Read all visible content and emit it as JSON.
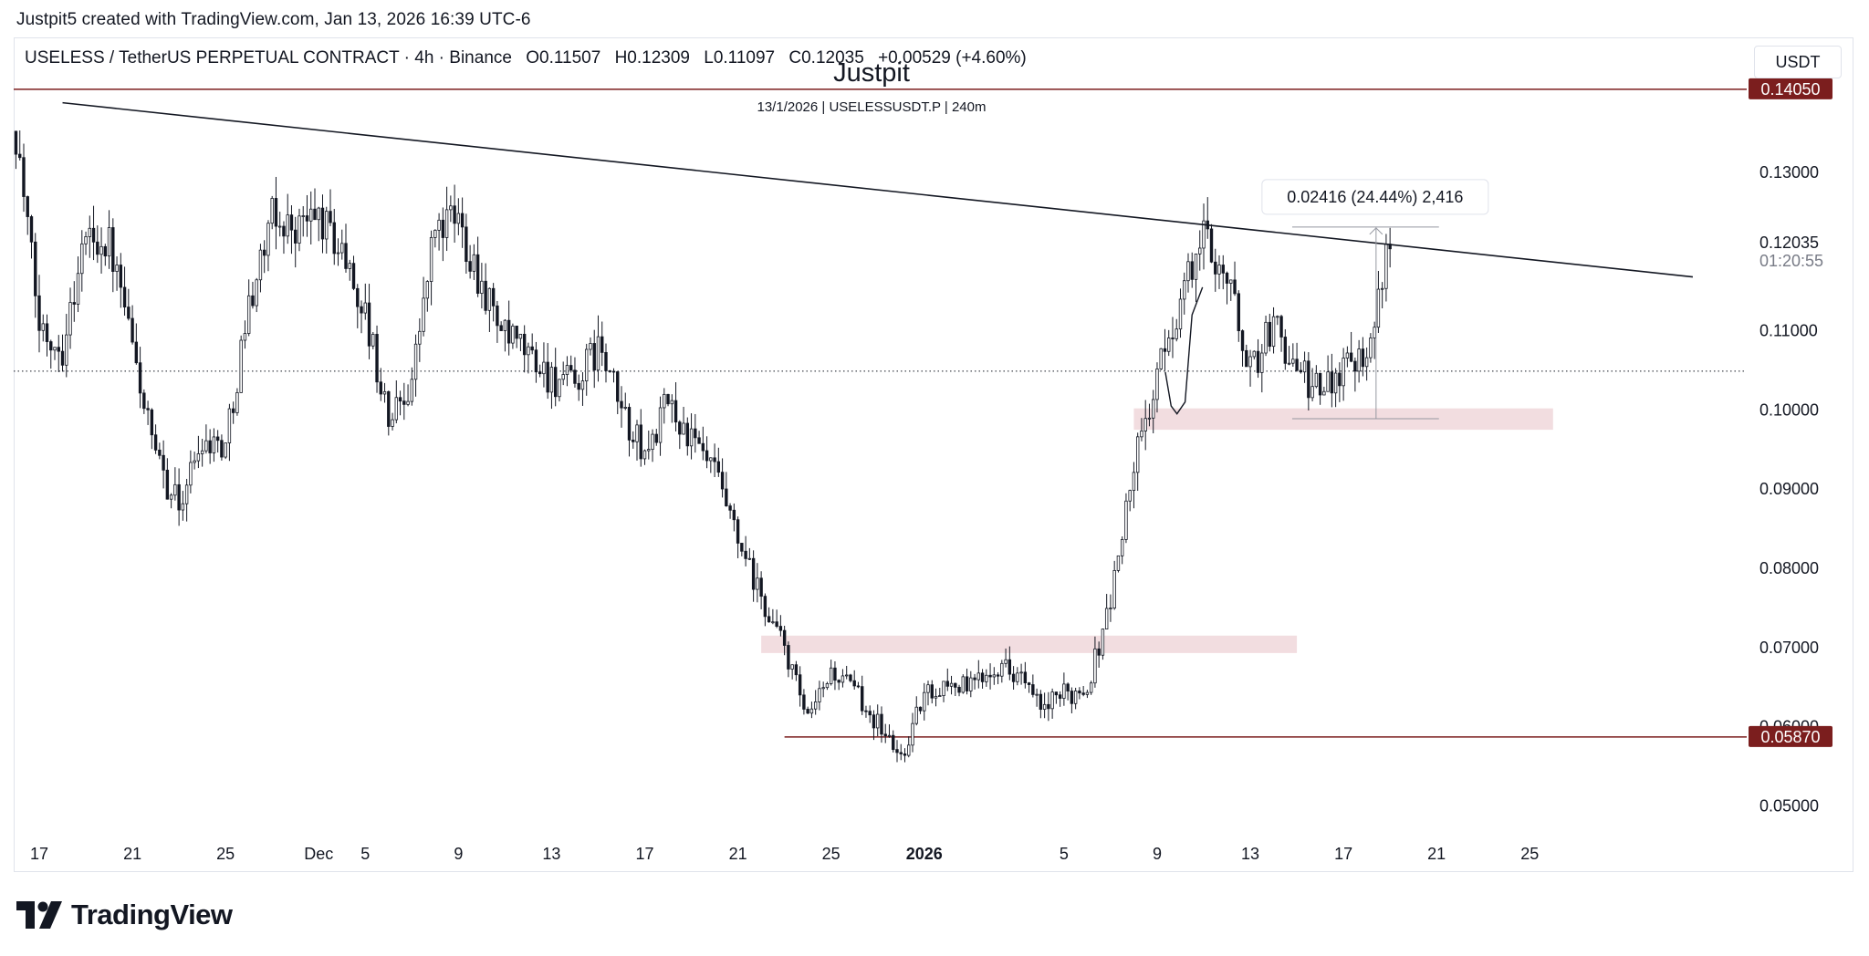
{
  "header": {
    "credit": "Justpit5 created with TradingView.com, Jan 13, 2026 16:39 UTC-6"
  },
  "legend": {
    "symbol": "USELESS / TetherUS PERPETUAL CONTRACT · 4h · Binance",
    "open": "O0.11507",
    "high": "H0.12309",
    "low": "L0.11097",
    "close": "C0.12035",
    "change": "+0.00529 (+4.60%)"
  },
  "watermark": {
    "title": "Justpit",
    "subtitle": "13/1/2026 | USELESSUSDT.P | 240m"
  },
  "currency_button": "USDT",
  "footer": {
    "brand": "TradingView"
  },
  "colors": {
    "candle": "#131722",
    "level_line": "#7b1e1e",
    "zone": "#f2dde0",
    "trendline": "#131722"
  },
  "chart_data": {
    "type": "candlestick",
    "symbol": "USELESSUSDT.P",
    "interval": "4h",
    "x_axis": {
      "labels": [
        "17",
        "21",
        "25",
        "Dec",
        "5",
        "9",
        "13",
        "17",
        "21",
        "25",
        "2026",
        "5",
        "9",
        "13",
        "17",
        "21",
        "25"
      ],
      "bold_labels": [
        "2026"
      ],
      "range": [
        "2025-11-17",
        "2026-01-25"
      ]
    },
    "y_axis": {
      "ticks": [
        "0.13000",
        "0.11000",
        "0.10000",
        "0.09000",
        "0.08000",
        "0.07000",
        "0.06000",
        "0.05000"
      ],
      "range": [
        0.045,
        0.145
      ]
    },
    "last_price": {
      "value": "0.12035",
      "countdown": "01:20:55"
    },
    "horizontal_levels": [
      {
        "value": 0.1405,
        "label": "0.14050"
      },
      {
        "value": 0.0587,
        "label": "0.05870"
      }
    ],
    "dotted_reference_level": 0.1049,
    "trendline": {
      "from": {
        "date": "2025-11-18",
        "price": 0.1388
      },
      "to": {
        "date": "2026-01-27",
        "price": 0.1168
      }
    },
    "zones": [
      {
        "from": "2026-01-03",
        "to": "2026-01-21",
        "low": 0.0975,
        "high": 0.1002
      },
      {
        "from": "2025-12-18",
        "to": "2026-01-10",
        "low": 0.0693,
        "high": 0.0715
      }
    ],
    "measure": {
      "label": "0.02416 (24.44%) 2,416",
      "from": 0.0989,
      "to": 0.1231,
      "date": "2026-01-14"
    },
    "price_path": [
      [
        "2025-11-16",
        0.1352
      ],
      [
        "2025-11-17",
        0.1105
      ],
      [
        "2025-11-18",
        0.108
      ],
      [
        "2025-11-19",
        0.1222
      ],
      [
        "2025-11-20",
        0.121
      ],
      [
        "2025-11-21",
        0.108
      ],
      [
        "2025-11-22",
        0.0935
      ],
      [
        "2025-11-23",
        0.088
      ],
      [
        "2025-11-24",
        0.0965
      ],
      [
        "2025-11-25",
        0.0955
      ],
      [
        "2025-11-26",
        0.1135
      ],
      [
        "2025-11-27",
        0.124
      ],
      [
        "2025-11-28",
        0.123
      ],
      [
        "2025-11-29",
        0.1245
      ],
      [
        "2025-11-30",
        0.12
      ],
      [
        "2025-12-01",
        0.112
      ],
      [
        "2025-12-02",
        0.0985
      ],
      [
        "2025-12-03",
        0.104
      ],
      [
        "2025-12-04",
        0.123
      ],
      [
        "2025-12-05",
        0.124
      ],
      [
        "2025-12-06",
        0.116
      ],
      [
        "2025-12-07",
        0.109
      ],
      [
        "2025-12-08",
        0.107
      ],
      [
        "2025-12-09",
        0.104
      ],
      [
        "2025-12-10",
        0.103
      ],
      [
        "2025-12-11",
        0.108
      ],
      [
        "2025-12-12",
        0.1
      ],
      [
        "2025-12-13",
        0.094
      ],
      [
        "2025-12-14",
        0.101
      ],
      [
        "2025-12-15",
        0.096
      ],
      [
        "2025-12-16",
        0.092
      ],
      [
        "2025-12-17",
        0.083
      ],
      [
        "2025-12-18",
        0.076
      ],
      [
        "2025-12-19",
        0.07
      ],
      [
        "2025-12-20",
        0.0605
      ],
      [
        "2025-12-21",
        0.067
      ],
      [
        "2025-12-22",
        0.0645
      ],
      [
        "2025-12-23",
        0.0605
      ],
      [
        "2025-12-24",
        0.056
      ],
      [
        "2025-12-25",
        0.064
      ],
      [
        "2025-12-26",
        0.0655
      ],
      [
        "2025-12-27",
        0.065
      ],
      [
        "2025-12-28",
        0.068
      ],
      [
        "2025-12-29",
        0.067
      ],
      [
        "2025-12-30",
        0.062
      ],
      [
        "2025-12-31",
        0.064
      ],
      [
        "2026-01-01",
        0.065
      ],
      [
        "2026-01-02",
        0.076
      ],
      [
        "2026-01-03",
        0.093
      ],
      [
        "2026-01-04",
        0.104
      ],
      [
        "2026-01-05",
        0.114
      ],
      [
        "2026-01-06",
        0.122
      ],
      [
        "2026-01-07",
        0.117
      ],
      [
        "2026-01-08",
        0.105
      ],
      [
        "2026-01-09",
        0.111
      ],
      [
        "2026-01-10",
        0.105
      ],
      [
        "2026-01-11",
        0.102
      ],
      [
        "2026-01-12",
        0.106
      ],
      [
        "2026-01-13",
        0.108
      ],
      [
        "2026-01-14",
        0.1204
      ]
    ]
  }
}
